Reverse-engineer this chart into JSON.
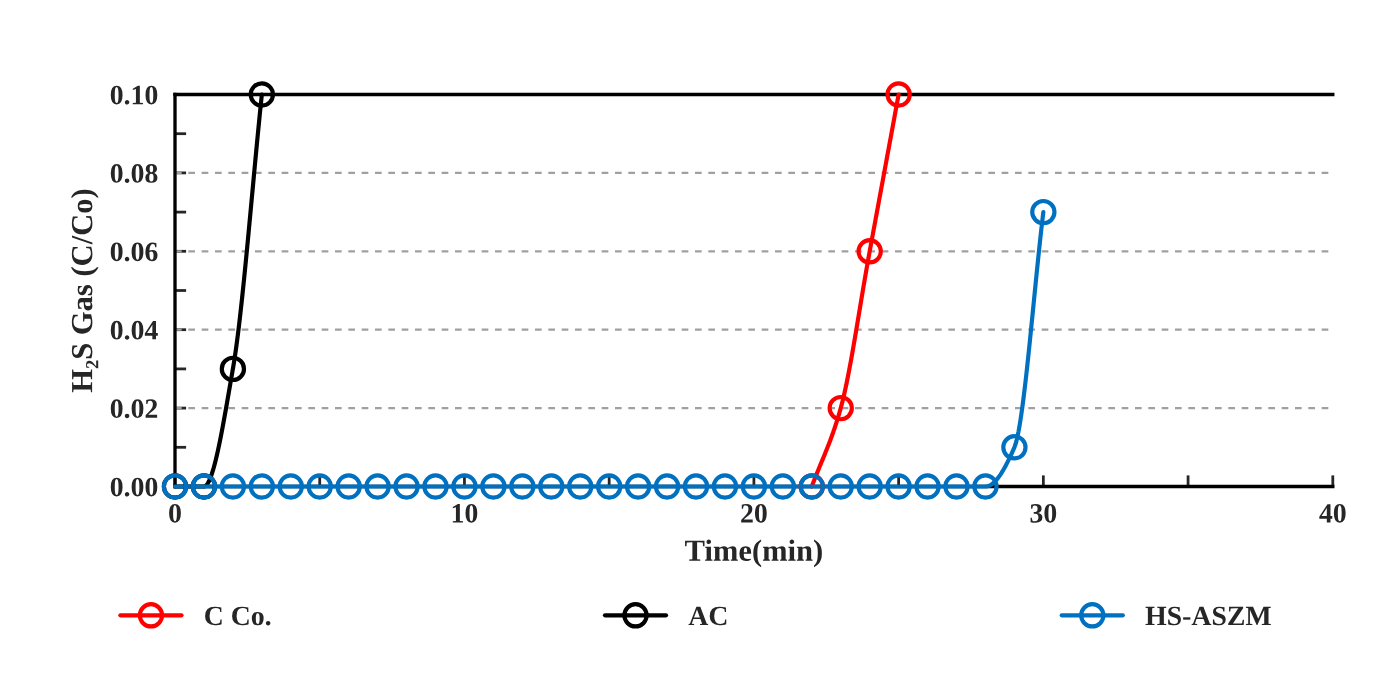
{
  "chart_data": {
    "type": "line",
    "xlabel": "Time(min)",
    "ylabel": "H₂S Gas (C/Co)",
    "xlim": [
      0,
      40
    ],
    "xticks": [
      0,
      {
        "value": 5,
        "label": null
      },
      10,
      {
        "value": 15,
        "label": null
      },
      20,
      {
        "value": 25,
        "label": null
      },
      30,
      {
        "value": 35,
        "label": null
      },
      40
    ],
    "ylim": [
      0,
      0.1
    ],
    "yticks": [
      {
        "value": 0,
        "label": "0.00"
      },
      {
        "value": 0.01,
        "label": null
      },
      {
        "value": 0.02,
        "label": "0.02"
      },
      {
        "value": 0.03,
        "label": null
      },
      {
        "value": 0.04,
        "label": "0.04"
      },
      {
        "value": 0.05,
        "label": null
      },
      {
        "value": 0.06,
        "label": "0.06"
      },
      {
        "value": 0.07,
        "label": null
      },
      {
        "value": 0.08,
        "label": "0.08"
      },
      {
        "value": 0.09,
        "label": null
      },
      {
        "value": 0.1,
        "label": "0.10"
      }
    ],
    "grid": "y",
    "legend": "bottom",
    "marker": "circle",
    "line_style": "solid",
    "series": [
      {
        "name": "C Co.",
        "color": "#ff0000",
        "x": [
          22,
          23,
          24,
          25
        ],
        "values": [
          0,
          0.02,
          0.06,
          0.1
        ]
      },
      {
        "name": "AC",
        "color": "#000000",
        "x": [
          0,
          1,
          2,
          3
        ],
        "values": [
          0,
          0,
          0.03,
          0.1
        ]
      },
      {
        "name": "HS-ASZM",
        "color": "#0070c0",
        "x": [
          0,
          1,
          2,
          3,
          4,
          5,
          6,
          7,
          8,
          9,
          10,
          11,
          12,
          13,
          14,
          15,
          16,
          17,
          18,
          19,
          20,
          21,
          22,
          23,
          24,
          25,
          26,
          27,
          28,
          29,
          30
        ],
        "values": [
          0,
          0,
          0,
          0,
          0,
          0,
          0,
          0,
          0,
          0,
          0,
          0,
          0,
          0,
          0,
          0,
          0,
          0,
          0,
          0,
          0,
          0,
          0,
          0,
          0,
          0,
          0,
          0,
          0,
          0.01,
          0.07
        ]
      }
    ]
  }
}
